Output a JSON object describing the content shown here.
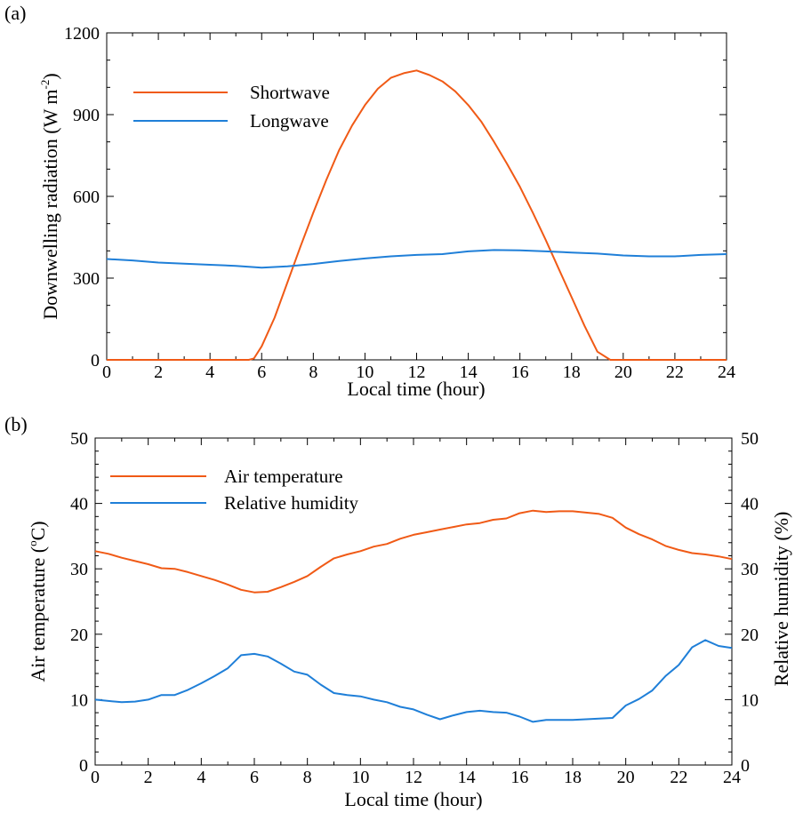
{
  "colors": {
    "orange": "#f05a16",
    "blue": "#1f7fd8",
    "axis": "#000000"
  },
  "chart_data": [
    {
      "type": "line",
      "panel_label": "(a)",
      "xlabel": "Local time (hour)",
      "ylabel": "Downwelling radiation (W m",
      "ylabel_sup": "-2",
      "ylabel_close": ")",
      "xlim": [
        0,
        24
      ],
      "ylim": [
        0,
        1200
      ],
      "xticks": [
        0,
        2,
        4,
        6,
        8,
        10,
        12,
        14,
        16,
        18,
        20,
        22,
        24
      ],
      "yticks": [
        0,
        300,
        600,
        900,
        1200
      ],
      "legend_position": "top-left",
      "series": [
        {
          "name": "Shortwave",
          "color": "#f05a16",
          "x": [
            0,
            1,
            2,
            3,
            4,
            5,
            5.5,
            5.7,
            6,
            6.5,
            7,
            7.5,
            8,
            8.5,
            9,
            9.5,
            10,
            10.5,
            11,
            11.5,
            12,
            12.5,
            13,
            13.5,
            14,
            14.5,
            15,
            15.5,
            16,
            16.5,
            17,
            17.5,
            18,
            18.5,
            19,
            19.5,
            20,
            21,
            22,
            23,
            24
          ],
          "values": [
            0,
            0,
            0,
            0,
            0,
            0,
            0,
            5,
            50,
            155,
            285,
            415,
            540,
            660,
            770,
            860,
            935,
            995,
            1035,
            1052,
            1062,
            1045,
            1022,
            985,
            935,
            875,
            800,
            720,
            635,
            540,
            440,
            335,
            230,
            125,
            30,
            0,
            0,
            0,
            0,
            0,
            0
          ]
        },
        {
          "name": "Longwave",
          "color": "#1f7fd8",
          "x": [
            0,
            1,
            2,
            3,
            4,
            5,
            6,
            7,
            8,
            9,
            10,
            11,
            12,
            13,
            14,
            15,
            16,
            17,
            18,
            19,
            20,
            21,
            22,
            23,
            24
          ],
          "values": [
            370,
            365,
            357,
            353,
            349,
            345,
            338,
            343,
            352,
            363,
            372,
            380,
            385,
            388,
            398,
            403,
            402,
            398,
            394,
            390,
            383,
            380,
            380,
            385,
            388
          ]
        }
      ]
    },
    {
      "type": "line",
      "panel_label": "(b)",
      "xlabel": "Local time (hour)",
      "ylabel": "Air temperature (",
      "ylabel_sup": "o",
      "ylabel_close": "C)",
      "ylabel_right": "Relative humidity (%)",
      "xlim": [
        0,
        24
      ],
      "ylim": [
        0,
        50
      ],
      "ylim_right": [
        0,
        50
      ],
      "xticks": [
        0,
        2,
        4,
        6,
        8,
        10,
        12,
        14,
        16,
        18,
        20,
        22,
        24
      ],
      "yticks": [
        0,
        10,
        20,
        30,
        40,
        50
      ],
      "legend_position": "top-left",
      "series": [
        {
          "name": "Air temperature",
          "color": "#f05a16",
          "x": [
            0,
            0.5,
            1,
            1.5,
            2,
            2.5,
            3,
            3.5,
            4,
            4.5,
            5,
            5.5,
            6,
            6.5,
            7,
            7.5,
            8,
            8.5,
            9,
            9.5,
            10,
            10.5,
            11,
            11.5,
            12,
            12.5,
            13,
            13.5,
            14,
            14.5,
            15,
            15.5,
            16,
            16.5,
            17,
            17.5,
            18,
            18.5,
            19,
            19.5,
            20,
            20.5,
            21,
            21.5,
            22,
            22.5,
            23,
            23.5,
            24
          ],
          "values": [
            32.7,
            32.3,
            31.7,
            31.2,
            30.7,
            30.1,
            30.0,
            29.5,
            28.9,
            28.3,
            27.6,
            26.8,
            26.4,
            26.5,
            27.2,
            28.0,
            28.9,
            30.3,
            31.6,
            32.2,
            32.7,
            33.4,
            33.8,
            34.6,
            35.2,
            35.6,
            36.0,
            36.4,
            36.8,
            37.0,
            37.5,
            37.7,
            38.5,
            38.9,
            38.7,
            38.8,
            38.8,
            38.6,
            38.4,
            37.8,
            36.3,
            35.3,
            34.5,
            33.5,
            32.9,
            32.4,
            32.2,
            31.9,
            31.5
          ]
        },
        {
          "name": "Relative humidity",
          "color": "#1f7fd8",
          "x": [
            0,
            0.5,
            1,
            1.5,
            2,
            2.5,
            3,
            3.5,
            4,
            4.5,
            5,
            5.5,
            6,
            6.5,
            7,
            7.5,
            8,
            8.5,
            9,
            9.5,
            10,
            10.5,
            11,
            11.5,
            12,
            12.5,
            13,
            13.5,
            14,
            14.5,
            15,
            15.5,
            16,
            16.5,
            17,
            17.5,
            18,
            18.5,
            19,
            19.5,
            20,
            20.5,
            21,
            21.5,
            22,
            22.5,
            23,
            23.5,
            24
          ],
          "values": [
            10.0,
            9.8,
            9.6,
            9.7,
            10.0,
            10.7,
            10.7,
            11.5,
            12.5,
            13.6,
            14.8,
            16.8,
            17.0,
            16.6,
            15.5,
            14.3,
            13.8,
            12.3,
            11.0,
            10.7,
            10.5,
            10.0,
            9.6,
            8.9,
            8.5,
            7.7,
            7.0,
            7.6,
            8.1,
            8.3,
            8.1,
            8.0,
            7.4,
            6.6,
            6.9,
            6.9,
            6.9,
            7.0,
            7.1,
            7.2,
            9.1,
            10.1,
            11.4,
            13.6,
            15.3,
            18.0,
            19.1,
            18.2,
            17.9
          ]
        }
      ]
    }
  ]
}
